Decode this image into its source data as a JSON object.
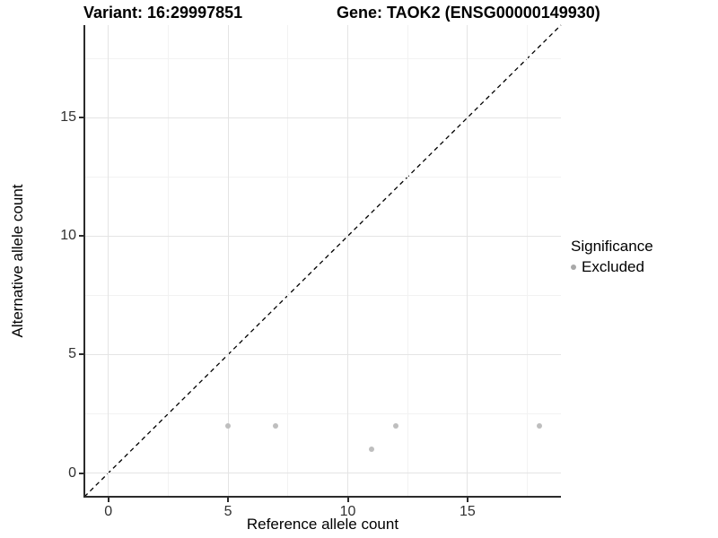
{
  "chart_data": {
    "type": "scatter",
    "titles": {
      "left": "Variant: 16:29997851",
      "right": "Gene: TAOK2 (ENSG00000149930)"
    },
    "xlabel": "Reference allele count",
    "ylabel": "Alternative allele count",
    "xlim": [
      -1,
      18.9
    ],
    "ylim": [
      -1,
      18.9
    ],
    "xticks": [
      0,
      5,
      10,
      15
    ],
    "yticks": [
      0,
      5,
      10,
      15
    ],
    "minor_gridlines_x": [
      2.5,
      7.5,
      12.5,
      17.5
    ],
    "minor_gridlines_y": [
      2.5,
      7.5,
      12.5,
      17.5
    ],
    "grid": "major+minor",
    "series": [
      {
        "name": "Excluded",
        "color": "#BEBEBE",
        "marker": "circle",
        "points": [
          [
            5,
            2
          ],
          [
            7,
            2
          ],
          [
            11,
            1
          ],
          [
            12,
            2
          ],
          [
            18,
            2
          ]
        ]
      }
    ],
    "reference_line": {
      "type": "abline",
      "slope": 1,
      "intercept": 0,
      "linestyle": "dashed",
      "color": "#000000"
    },
    "legend": {
      "title": "Significance",
      "position": "right",
      "entries": [
        {
          "label": "Excluded",
          "color": "#A8A8A8"
        }
      ]
    },
    "colors": {
      "grid_major": "#E4E4E4",
      "grid_minor": "#F2F2F2",
      "axis_line": "#2B2B2B",
      "tick_label": "#313131",
      "background": "#FFFFFF"
    }
  }
}
